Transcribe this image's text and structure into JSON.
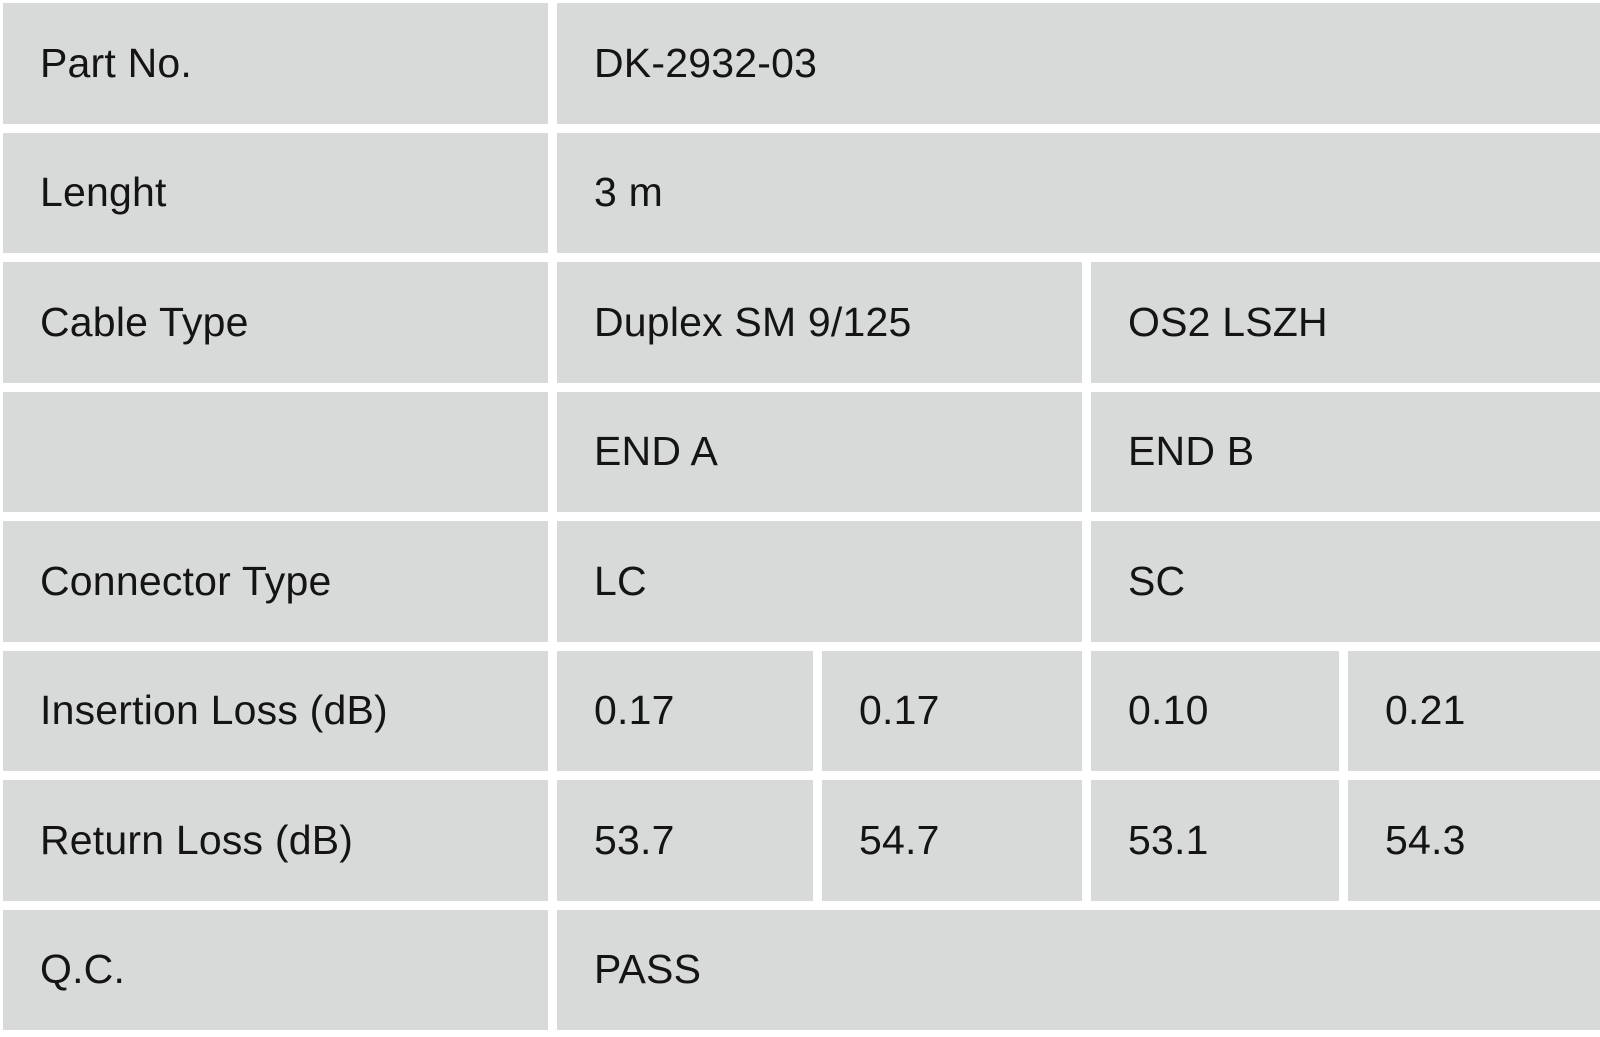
{
  "table": {
    "colors": {
      "cell_background": "#d8dad9",
      "gutter": "#ffffff",
      "text": "#141414"
    },
    "rows": {
      "part_no": {
        "label": "Part No.",
        "value": "DK-2932-03"
      },
      "length": {
        "label": "Lenght",
        "value": "3 m"
      },
      "cable_type": {
        "label": "Cable Type",
        "a": "Duplex SM 9/125",
        "b": "OS2 LSZH"
      },
      "ends": {
        "label": "",
        "a": "END A",
        "b": "END B"
      },
      "connector_type": {
        "label": "Connector Type",
        "a": "LC",
        "b": "SC"
      },
      "insertion_loss": {
        "label": "Insertion Loss (dB)",
        "values": [
          "0.17",
          "0.17",
          "0.10",
          "0.21"
        ]
      },
      "return_loss": {
        "label": "Return Loss (dB)",
        "values": [
          "53.7",
          "54.7",
          "53.1",
          "54.3"
        ]
      },
      "qc": {
        "label": "Q.C.",
        "value": "PASS"
      }
    }
  }
}
